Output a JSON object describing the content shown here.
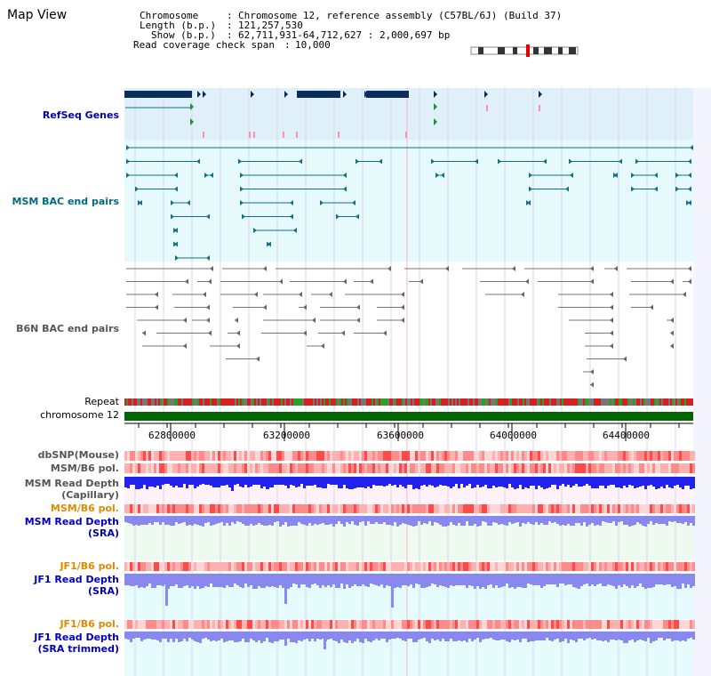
{
  "page_title": "Map View",
  "info": {
    "chromosome_label": "Chromosome",
    "chromosome_value": "Chromosome 12, reference assembly (C57BL/6J) (Build 37)",
    "length_label": "Length (b.p.)",
    "length_value": "121,257,530",
    "show_label": "Show (b.p.)",
    "show_value": "62,711,931-64,712,627 : 2,000,697 bp",
    "coverage_label": "Read coverage check span",
    "coverage_value": "10,000"
  },
  "tracks": {
    "refseq": "RefSeq Genes",
    "msm_bac": "MSM BAC end pairs",
    "b6n_bac": "B6N BAC end pairs",
    "repeat": "Repeat",
    "chromosome": "chromosome 12",
    "dbsnp": "dbSNP(Mouse)",
    "msm_pol": "MSM/B6 pol.",
    "msm_depth_cap_1": "MSM Read Depth",
    "msm_depth_cap_2": "(Capillary)",
    "msm_pol_sra": "MSM/B6 pol.",
    "msm_depth_sra_1": "MSM Read Depth",
    "msm_depth_sra_2": "(SRA)",
    "jf1_pol": "JF1/B6 pol.",
    "jf1_depth_1": "JF1 Read Depth",
    "jf1_depth_2": "(SRA)",
    "jf1_pol_trim": "JF1/B6 pol.",
    "jf1_trim_1": "JF1 Read Depth",
    "jf1_trim_2": "(SRA trimmed)"
  },
  "axis": {
    "ticks": [
      "62800000",
      "63200000",
      "63600000",
      "64000000",
      "64400000"
    ]
  },
  "colors": {
    "refseq_bg": "#dff0fb",
    "msm_bg": "#e6f9fb",
    "gene": "#0a2d5c",
    "msm_feature": "#136f86",
    "b6n_feature": "#666666",
    "chromosome": "#006600",
    "depth_blue": "#2222ee",
    "depth_light": "#8888ee"
  }
}
